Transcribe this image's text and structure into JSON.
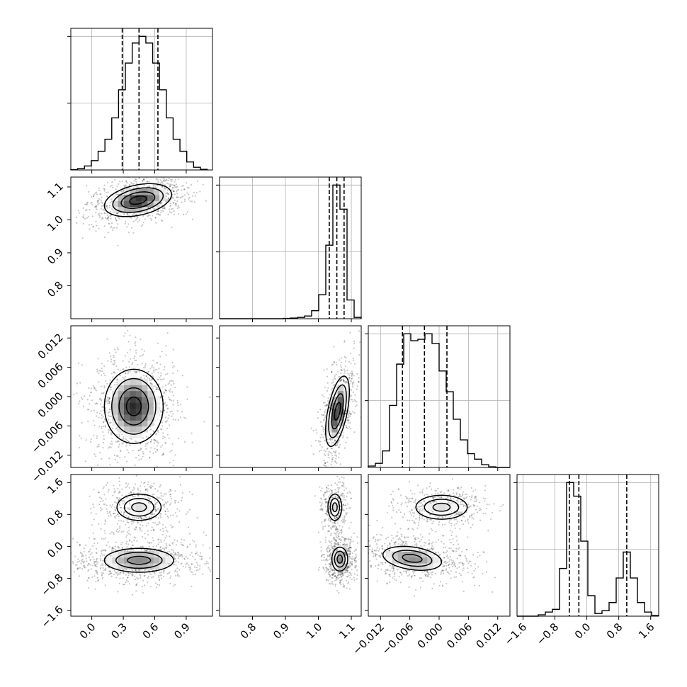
{
  "chart_data": {
    "type": "corner",
    "parameters": [
      {
        "range": [
          -0.2,
          1.15
        ],
        "ticks": [
          0.0,
          0.3,
          0.6,
          0.9
        ],
        "tick_labels": [
          "0.0",
          "0.3",
          "0.6",
          "0.9"
        ],
        "quantiles": [
          0.29,
          0.45,
          0.63
        ],
        "histogram": {
          "type": "step",
          "bin_edges": [
            -0.2,
            -0.135,
            -0.07,
            -0.005,
            0.06,
            0.125,
            0.19,
            0.255,
            0.32,
            0.385,
            0.45,
            0.515,
            0.58,
            0.645,
            0.71,
            0.775,
            0.84,
            0.905,
            0.97,
            1.035,
            1.1
          ],
          "heights": [
            0.002,
            0.01,
            0.03,
            0.07,
            0.14,
            0.23,
            0.39,
            0.6,
            0.8,
            0.95,
            1.0,
            0.95,
            0.8,
            0.6,
            0.39,
            0.23,
            0.14,
            0.06,
            0.02,
            0.005
          ]
        }
      },
      {
        "range": [
          0.7,
          1.13
        ],
        "ticks": [
          0.8,
          0.9,
          1.0,
          1.1
        ],
        "tick_labels": [
          "0.8",
          "0.9",
          "1.0",
          "1.1"
        ],
        "quantiles": [
          1.033,
          1.056,
          1.078
        ],
        "histogram": {
          "type": "step",
          "bin_edges": [
            0.7,
            0.7215,
            0.743,
            0.7645,
            0.786,
            0.8075,
            0.829,
            0.8505,
            0.872,
            0.8935,
            0.915,
            0.9365,
            0.958,
            0.9795,
            1.001,
            1.0225,
            1.044,
            1.0655,
            1.087,
            1.1085,
            1.13
          ],
          "heights": [
            0,
            0,
            0,
            0,
            0,
            0,
            0,
            0,
            0,
            0.002,
            0.005,
            0.01,
            0.02,
            0.06,
            0.18,
            0.55,
            1.0,
            0.82,
            0.14,
            0.01
          ]
        }
      },
      {
        "range": [
          -0.0145,
          0.0145
        ],
        "ticks": [
          -0.012,
          -0.006,
          0.0,
          0.006,
          0.012
        ],
        "tick_labels": [
          "−0.012",
          "−0.006",
          "0.000",
          "0.006",
          "0.012"
        ],
        "quantiles": [
          -0.0075,
          -0.003,
          0.0016
        ],
        "histogram": {
          "type": "step",
          "bin_edges": [
            -0.0145,
            -0.01305,
            -0.0116,
            -0.01015,
            -0.0087,
            -0.00725,
            -0.0058,
            -0.00435,
            -0.0029,
            -0.00145,
            0.0,
            0.00145,
            0.0029,
            0.00435,
            0.0058,
            0.00725,
            0.0087,
            0.01015,
            0.0116,
            0.01305,
            0.0145
          ],
          "heights": [
            0.01,
            0.03,
            0.12,
            0.45,
            0.75,
            0.97,
            0.92,
            0.93,
            0.97,
            0.9,
            0.7,
            0.55,
            0.35,
            0.2,
            0.1,
            0.06,
            0.02,
            0.005,
            0,
            0
          ]
        }
      },
      {
        "range": [
          -1.75,
          1.8
        ],
        "ticks": [
          -1.6,
          -0.8,
          0.0,
          0.8,
          1.6
        ],
        "tick_labels": [
          "−1.6",
          "−0.8",
          "0.0",
          "0.8",
          "1.6"
        ],
        "quantiles": [
          -0.44,
          -0.2,
          1.0
        ],
        "histogram": {
          "type": "step",
          "bin_edges": [
            -1.75,
            -1.5725,
            -1.395,
            -1.2175,
            -1.04,
            -0.8625,
            -0.685,
            -0.5075,
            -0.33,
            -0.1525,
            0.025,
            0.2025,
            0.38,
            0.5575,
            0.735,
            0.9125,
            1.09,
            1.2675,
            1.445,
            1.6225,
            1.8
          ],
          "heights": [
            0,
            0,
            0,
            0.01,
            0.03,
            0.05,
            0.35,
            0.98,
            0.88,
            0.55,
            0.15,
            0.02,
            0.04,
            0.1,
            0.28,
            0.47,
            0.28,
            0.1,
            0.03,
            0.005
          ]
        }
      }
    ],
    "pairs": [
      {
        "x": 0,
        "y": 1,
        "mode": "unimodal",
        "center": [
          0.44,
          1.06
        ],
        "spread": [
          0.16,
          0.025
        ],
        "rho": 0.35,
        "n_points": 900,
        "levels": [
          0.5,
          1.0,
          1.5,
          2.0
        ]
      },
      {
        "x": 0,
        "y": 2,
        "mode": "unimodal",
        "center": [
          0.4,
          -0.002
        ],
        "spread": [
          0.14,
          0.0038
        ],
        "rho": 0.0,
        "n_points": 1100,
        "levels": [
          0.5,
          1.0,
          1.5,
          2.0
        ]
      },
      {
        "x": 1,
        "y": 2,
        "mode": "unimodal",
        "center": [
          1.058,
          -0.003
        ],
        "spread": [
          0.018,
          0.0036
        ],
        "rho": 0.55,
        "n_points": 700,
        "levels": [
          0.5,
          1.0,
          1.5,
          2.0
        ]
      },
      {
        "x": 0,
        "y": 3,
        "mode": "bimodal",
        "modes": [
          {
            "center": [
              0.45,
              0.98
            ],
            "spread": [
              0.14,
              0.22
            ],
            "rho": 0.0,
            "weight": 0.35
          },
          {
            "center": [
              0.45,
              -0.35
            ],
            "spread": [
              0.22,
              0.2
            ],
            "rho": 0.0,
            "weight": 0.65
          }
        ],
        "n_points": 1300,
        "levels": [
          0.5,
          1.0,
          1.5
        ]
      },
      {
        "x": 1,
        "y": 3,
        "mode": "bimodal",
        "modes": [
          {
            "center": [
              1.05,
              0.98
            ],
            "spread": [
              0.014,
              0.22
            ],
            "rho": 0.0,
            "weight": 0.35
          },
          {
            "center": [
              1.065,
              -0.32
            ],
            "spread": [
              0.016,
              0.2
            ],
            "rho": 0.0,
            "weight": 0.65
          }
        ],
        "n_points": 1000,
        "levels": [
          0.5,
          1.0,
          1.5
        ]
      },
      {
        "x": 2,
        "y": 3,
        "mode": "bimodal",
        "modes": [
          {
            "center": [
              0.0005,
              0.98
            ],
            "spread": [
              0.0035,
              0.2
            ],
            "rho": 0.0,
            "weight": 0.35
          },
          {
            "center": [
              -0.0055,
              -0.3
            ],
            "spread": [
              0.004,
              0.2
            ],
            "rho": -0.3,
            "weight": 0.65
          }
        ],
        "n_points": 1100,
        "levels": [
          0.5,
          1.0,
          1.5
        ]
      }
    ],
    "grid": true
  }
}
